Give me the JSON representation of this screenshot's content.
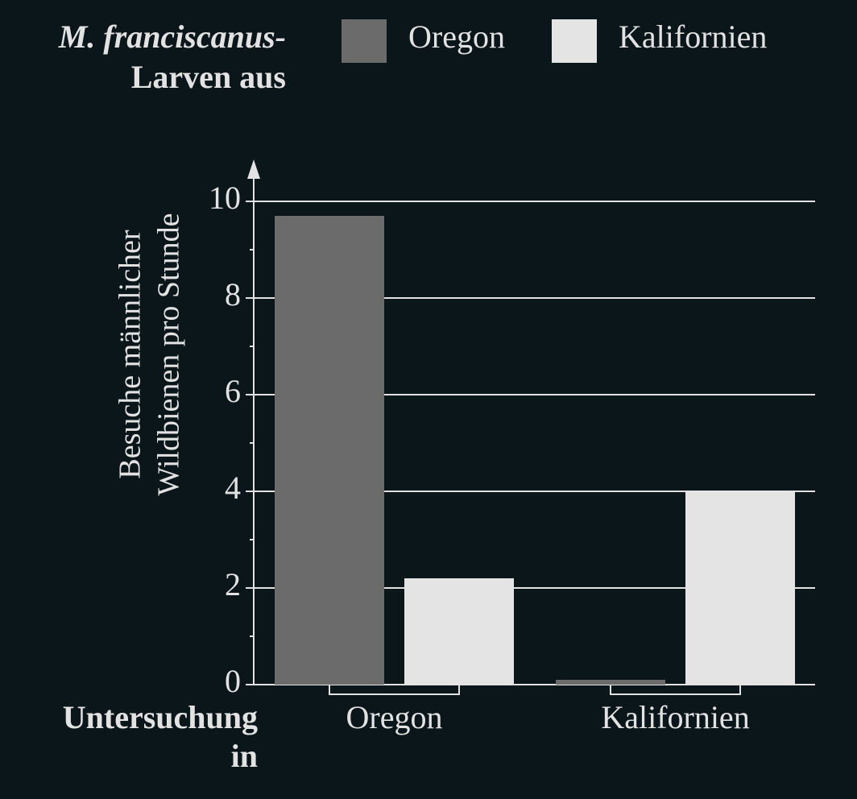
{
  "chart_data": {
    "type": "bar",
    "legend_title": [
      "M. franciscanus-",
      "Larven aus"
    ],
    "ylabel": [
      "Besuche männlicher",
      "Wildbienen pro Stunde"
    ],
    "xlabel": [
      "Untersuchung",
      "in"
    ],
    "categories": [
      "Oregon",
      "Kalifornien"
    ],
    "series": [
      {
        "name": "Oregon",
        "color": "#6b6b6b",
        "values": [
          9.7,
          0.1
        ]
      },
      {
        "name": "Kalifornien",
        "color": "#e4e4e4",
        "values": [
          2.2,
          4.0
        ]
      }
    ],
    "ylim": [
      0,
      10
    ],
    "yticks": [
      0,
      2,
      4,
      6,
      8,
      10
    ],
    "minor_yticks": [
      1,
      3,
      5,
      7,
      9
    ],
    "grid": true
  }
}
